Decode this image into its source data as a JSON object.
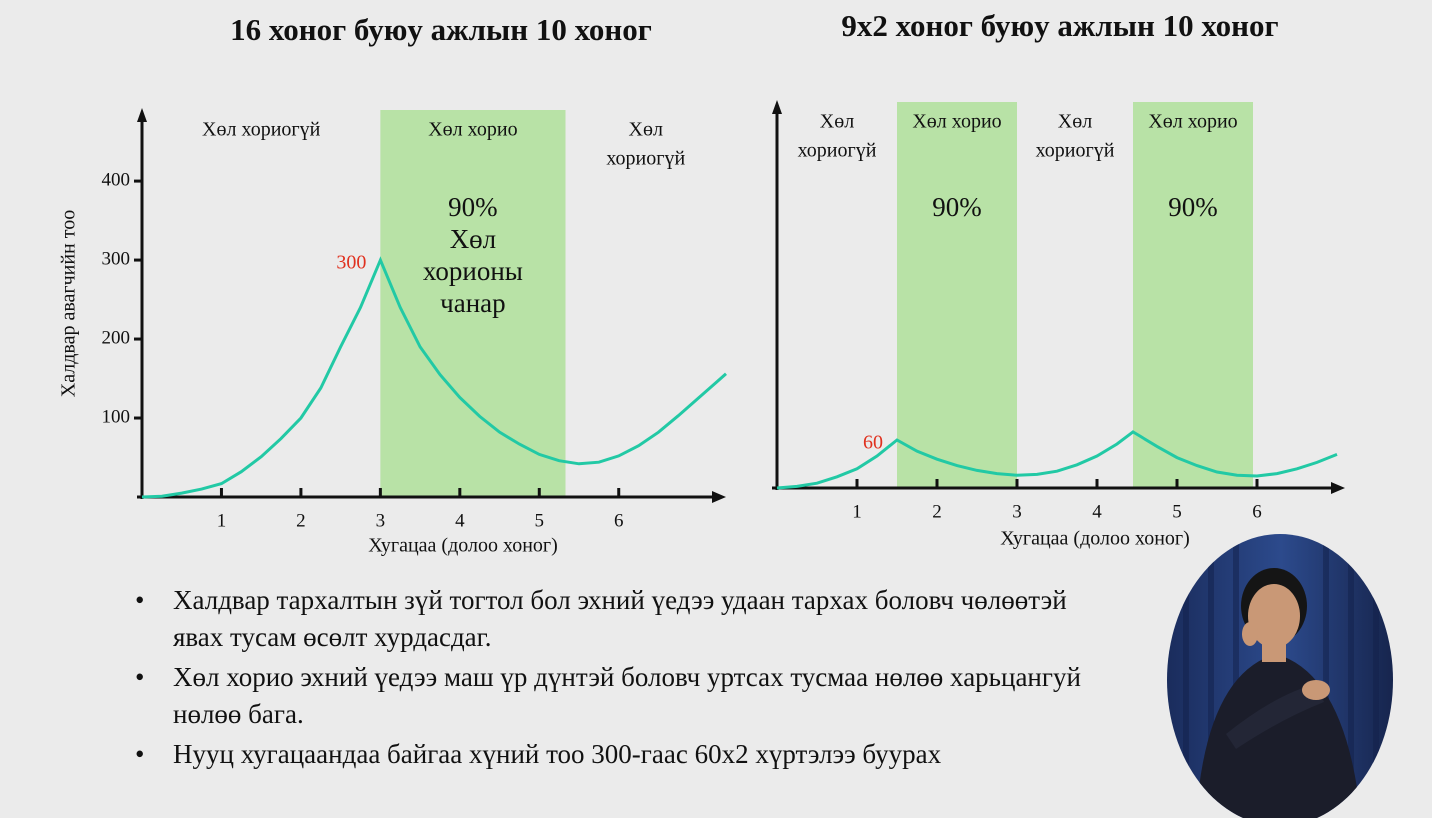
{
  "chart_data": [
    {
      "type": "line",
      "title": "16 хоног буюу ажлын 10 хоног",
      "xlabel": "Хугацаа (долоо хоног)",
      "ylabel": "Халдвар авагчийн тоо",
      "x": [
        0,
        0.25,
        0.5,
        0.75,
        1,
        1.25,
        1.5,
        1.75,
        2,
        2.25,
        2.5,
        2.75,
        3,
        3.25,
        3.5,
        3.75,
        4,
        4.25,
        4.5,
        4.75,
        5,
        5.25,
        5.5,
        5.75,
        6,
        6.25,
        6.5,
        6.75,
        7,
        7.35
      ],
      "values": [
        0,
        1,
        5,
        10,
        17,
        32,
        51,
        74,
        100,
        138,
        190,
        240,
        300,
        240,
        190,
        155,
        126,
        102,
        82,
        67,
        54,
        46,
        42,
        44,
        52,
        65,
        82,
        103,
        125,
        156
      ],
      "color": "#22c9a5",
      "xlim": [
        0,
        7.35
      ],
      "ylim": [
        0,
        490
      ],
      "xticks": [
        1,
        2,
        3,
        4,
        5,
        6
      ],
      "yticks": [
        100,
        200,
        300,
        400
      ],
      "regions": [
        {
          "lines": [
            "Хөл хориогүй"
          ],
          "from": 0,
          "to": 3
        },
        {
          "lines": [
            "Хөл хорио"
          ],
          "from": 3,
          "to": 5.33,
          "color": "#b8e2a6",
          "note": [
            "90%",
            "Хөл",
            "хорионы",
            "чанар"
          ]
        },
        {
          "lines": [
            "Хөл",
            "хориогүй"
          ],
          "from": 5.33,
          "to": 7.35
        }
      ],
      "annotations": [
        {
          "text": "300",
          "x": 3,
          "y": 300,
          "color": "#e0301e"
        }
      ]
    },
    {
      "type": "line",
      "title": "9х2 хоног буюу ажлын 10 хоног",
      "xlabel": "Хугацаа (долоо хоног)",
      "x": [
        0,
        0.25,
        0.5,
        0.75,
        1,
        1.25,
        1.5,
        1.75,
        2,
        2.25,
        2.5,
        2.75,
        3,
        3.25,
        3.5,
        3.75,
        4,
        4.25,
        4.45,
        4.75,
        5,
        5.25,
        5.5,
        5.75,
        6,
        6.25,
        6.5,
        6.75,
        7
      ],
      "values": [
        0,
        2,
        6,
        14,
        24,
        40,
        60,
        46,
        36,
        28,
        22,
        18,
        16,
        17,
        21,
        29,
        40,
        55,
        70,
        52,
        38,
        28,
        20,
        16,
        15,
        18,
        24,
        32,
        42
      ],
      "color": "#22c9a5",
      "xlim": [
        0,
        7.1
      ],
      "ylim": [
        0,
        482
      ],
      "xticks": [
        1,
        2,
        3,
        4,
        5,
        6
      ],
      "regions": [
        {
          "lines": [
            "Хөл",
            "хориогүй"
          ],
          "from": 0,
          "to": 1.5
        },
        {
          "lines": [
            "Хөл хорио"
          ],
          "from": 1.5,
          "to": 3,
          "color": "#b8e2a6",
          "note": [
            "90%"
          ]
        },
        {
          "lines": [
            "Хөл",
            "хориогүй"
          ],
          "from": 3,
          "to": 4.45
        },
        {
          "lines": [
            "Хөл хорио"
          ],
          "from": 4.45,
          "to": 5.95,
          "color": "#b8e2a6",
          "note": [
            "90%"
          ]
        }
      ],
      "annotations": [
        {
          "text": "60",
          "x": 1.5,
          "y": 60,
          "color": "#e0301e"
        }
      ]
    }
  ],
  "bullets": [
    [
      "Халдвар тархалтын зүй тогтол бол эхний үедээ удаан тархах боловч чөлөөтэй",
      "явах тусам өсөлт хурдасдаг."
    ],
    [
      "Хөл хорио эхний үедээ маш үр дүнтэй боловч уртсах тусмаа нөлөө харьцангуй",
      "нөлөө бага."
    ],
    [
      "Нууц хугацаандаа байгаа хүний тоо 300-гаас 60х2 хүртэлээ буурах"
    ]
  ]
}
